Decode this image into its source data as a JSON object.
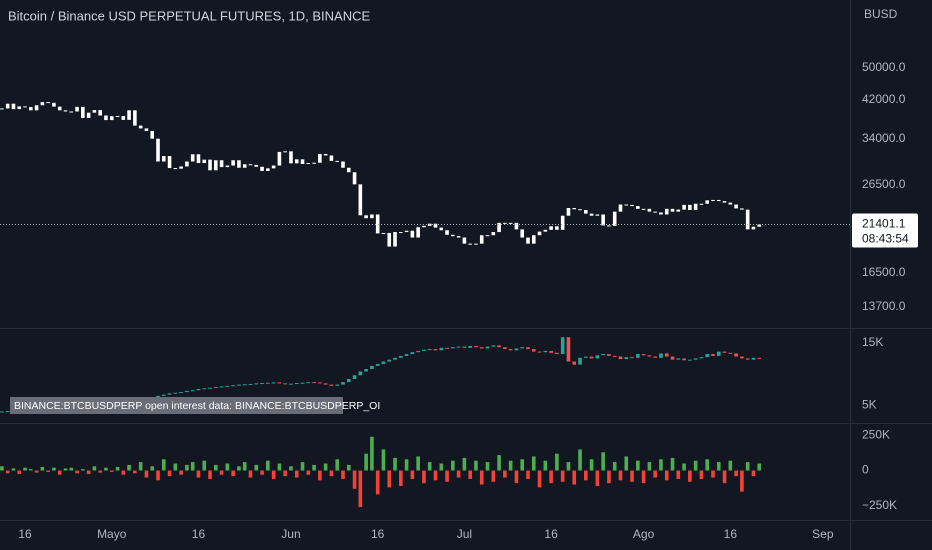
{
  "chart_data": [
    {
      "type": "candlestick",
      "title": "Bitcoin / Binance USD PERPETUAL FUTURES, 1D, BINANCE",
      "currency": "BUSD",
      "countdown": "08:43:54",
      "log_scale": true,
      "color": "#ffffff",
      "ylim": [
        12230,
        72100
      ],
      "yticks": [
        {
          "value": 50000,
          "label": "50000.0"
        },
        {
          "value": 42000,
          "label": "42000.0"
        },
        {
          "value": 34000,
          "label": "34000.0"
        },
        {
          "value": 26500,
          "label": "26500.0"
        },
        {
          "value": 16500,
          "label": "16500.0"
        },
        {
          "value": 13700,
          "label": "13700.0"
        }
      ],
      "values": [
        40100,
        41150,
        39950,
        40550,
        40400,
        39700,
        40800,
        41500,
        41350,
        40500,
        39700,
        39450,
        39450,
        40450,
        38100,
        39200,
        39750,
        38600,
        37650,
        38450,
        38500,
        37700,
        39700,
        36550,
        36000,
        35500,
        34050,
        30100,
        31000,
        29050,
        28950,
        29300,
        30100,
        31300,
        29850,
        30400,
        28700,
        30300,
        29200,
        29450,
        30300,
        29100,
        29650,
        29550,
        29250,
        28600,
        29000,
        29450,
        31700,
        31800,
        29800,
        30450,
        29700,
        29850,
        29900,
        31350,
        31100,
        30200,
        30100,
        29100,
        28400,
        26600,
        22500,
        22150,
        22600,
        20400,
        20450,
        19000,
        20550,
        20550,
        20700,
        19950,
        21100,
        21250,
        21500,
        21050,
        20750,
        20250,
        20100,
        19950,
        19300,
        19250,
        19300,
        20200,
        20200,
        20550,
        21600,
        21600,
        21600,
        20850,
        19950,
        19300,
        20200,
        20600,
        20800,
        21200,
        20800,
        22450,
        23400,
        23250,
        23150,
        22700,
        22450,
        22600,
        21300,
        21250,
        22950,
        23850,
        23800,
        23650,
        23300,
        23300,
        22950,
        22850,
        22600,
        23300,
        22950,
        23200,
        23800,
        23150,
        23950,
        23950,
        24400,
        24450,
        24300,
        24100,
        23850,
        23350,
        23200,
        20850,
        21150,
        21401.1
      ]
    },
    {
      "type": "candlestick",
      "title": "BINANCE:BTCBUSDPERP open interest data: BINANCE:BTCBUSDPERP_OI",
      "up_color": "#26a69a",
      "down_color": "#ef5350",
      "ylim": [
        2140,
        17220
      ],
      "yticks": [
        {
          "value": 15000,
          "label": "15K"
        },
        {
          "value": 5000,
          "label": "5K"
        }
      ],
      "values": [
        4000,
        4050,
        4100,
        4150,
        4120,
        4200,
        4250,
        4300,
        4280,
        4350,
        4400,
        4450,
        4500,
        4480,
        4550,
        4600,
        4650,
        4700,
        4750,
        4800,
        4850,
        4900,
        5000,
        5600,
        5900,
        6100,
        6300,
        6500,
        6700,
        6900,
        7000,
        7100,
        7300,
        7400,
        7600,
        7700,
        7800,
        7900,
        8000,
        8100,
        8200,
        8300,
        8350,
        8400,
        8500,
        8550,
        8600,
        8650,
        8500,
        8400,
        8450,
        8550,
        8600,
        8700,
        8650,
        8500,
        8300,
        8100,
        8300,
        8700,
        9200,
        9800,
        10400,
        10800,
        11300,
        11600,
        12000,
        12300,
        12600,
        12900,
        13200,
        13500,
        13700,
        13900,
        14000,
        13800,
        14200,
        14100,
        14300,
        14400,
        14200,
        14500,
        14300,
        14100,
        14400,
        14600,
        14300,
        14000,
        13800,
        14100,
        14300,
        14000,
        13600,
        13500,
        13700,
        13400,
        13200,
        15900,
        12000,
        11500,
        12600,
        12800,
        12500,
        13000,
        13200,
        12900,
        12800,
        12400,
        12700,
        12600,
        13200,
        13000,
        12800,
        12600,
        13300,
        12800,
        12300,
        12500,
        12200,
        12300,
        12500,
        12700,
        13200,
        12900,
        13600,
        13400,
        13300,
        12800,
        12500,
        12300,
        12600,
        12500
      ]
    },
    {
      "type": "bar",
      "up_color": "#4caf50",
      "down_color": "#f44336",
      "ylim": [
        -352000,
        331000
      ],
      "yticks": [
        {
          "value": 250000,
          "label": "250K"
        },
        0,
        {
          "value": -250000,
          "label": "−250K"
        }
      ],
      "xlim": [
        -0.33,
        146.7
      ],
      "xticks": [
        {
          "value": 4,
          "label": "16"
        },
        {
          "value": 19,
          "label": "Mayo"
        },
        {
          "value": 34,
          "label": "16"
        },
        {
          "value": 50,
          "label": "Jun"
        },
        {
          "value": 65,
          "label": "16"
        },
        {
          "value": 80,
          "label": "Jul"
        },
        {
          "value": 95,
          "label": "16"
        },
        {
          "value": 111,
          "label": "Ago"
        },
        {
          "value": 126,
          "label": "16"
        },
        {
          "value": 142,
          "label": "Sep"
        }
      ],
      "values": [
        30000,
        -20000,
        15000,
        -25000,
        20000,
        10000,
        -15000,
        25000,
        -10000,
        20000,
        -30000,
        15000,
        20000,
        -20000,
        10000,
        -25000,
        30000,
        -15000,
        20000,
        -10000,
        25000,
        -30000,
        40000,
        -20000,
        60000,
        -50000,
        30000,
        -70000,
        80000,
        -40000,
        50000,
        -30000,
        40000,
        60000,
        -50000,
        70000,
        -60000,
        40000,
        -30000,
        50000,
        -40000,
        30000,
        60000,
        -50000,
        40000,
        -30000,
        70000,
        -60000,
        50000,
        -40000,
        30000,
        -50000,
        60000,
        -30000,
        40000,
        -70000,
        50000,
        -40000,
        80000,
        -60000,
        40000,
        -130000,
        -260000,
        120000,
        240000,
        -170000,
        150000,
        -120000,
        90000,
        -110000,
        80000,
        -60000,
        100000,
        -90000,
        60000,
        -70000,
        50000,
        -80000,
        70000,
        -50000,
        90000,
        -60000,
        70000,
        -100000,
        60000,
        -80000,
        110000,
        -50000,
        70000,
        -90000,
        80000,
        -60000,
        100000,
        -120000,
        70000,
        -90000,
        120000,
        -80000,
        60000,
        -100000,
        150000,
        -70000,
        80000,
        -110000,
        130000,
        -90000,
        60000,
        -70000,
        100000,
        -80000,
        70000,
        -90000,
        60000,
        -50000,
        80000,
        -70000,
        90000,
        -60000,
        50000,
        -80000,
        70000,
        -60000,
        80000,
        -50000,
        60000,
        -90000,
        70000,
        -40000,
        -150000,
        60000,
        -40000,
        50000
      ]
    }
  ]
}
